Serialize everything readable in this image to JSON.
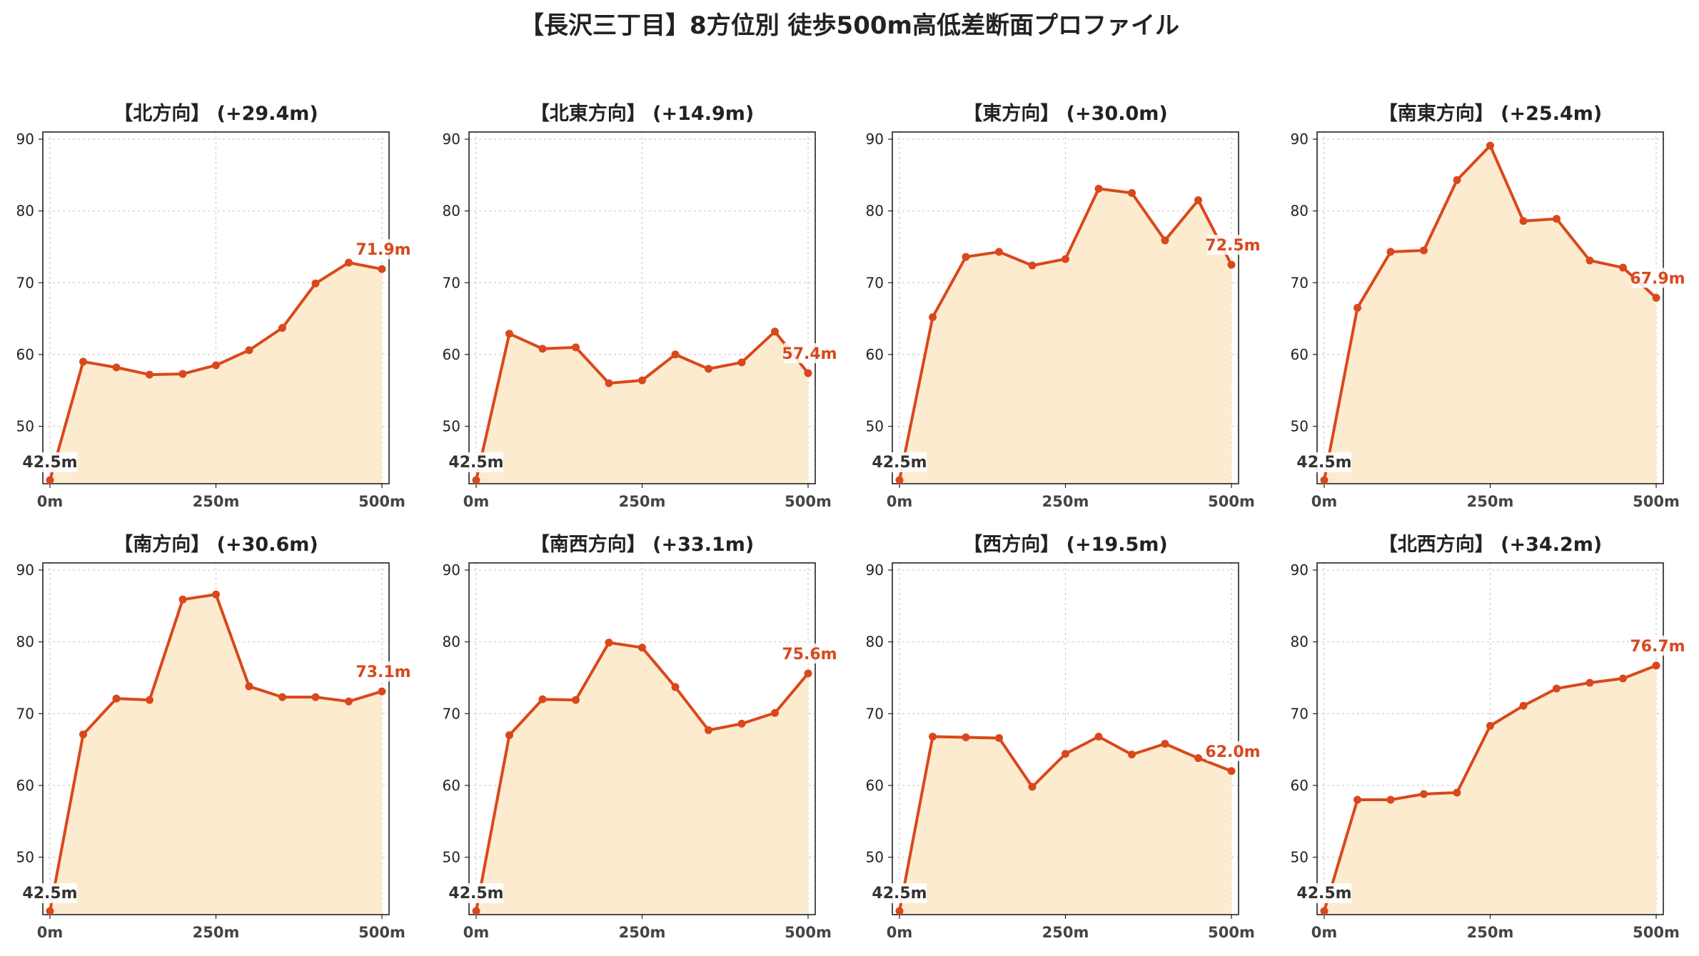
{
  "figure": {
    "title": "【長沢三丁目】8方位別 徒歩500m高低差断面プロファイル",
    "line_color": "#d9481c",
    "fill_color": "#fdebd0"
  },
  "chart_data": [
    {
      "type": "area",
      "title": "【北方向】 (+29.4m)",
      "x": [
        0,
        50,
        100,
        150,
        200,
        250,
        300,
        350,
        400,
        450,
        500
      ],
      "values": [
        42.5,
        59.0,
        58.2,
        57.2,
        57.3,
        58.5,
        60.6,
        63.7,
        69.9,
        72.8,
        71.9
      ],
      "start_label": "42.5m",
      "end_label": "71.9m",
      "xticks": [
        "0m",
        "250m",
        "500m"
      ],
      "yticks": [
        "50",
        "60",
        "70",
        "80",
        "90"
      ],
      "xlim": [
        0,
        500
      ],
      "ylim": [
        42,
        91
      ],
      "grid": true
    },
    {
      "type": "area",
      "title": "【北東方向】 (+14.9m)",
      "x": [
        0,
        50,
        100,
        150,
        200,
        250,
        300,
        350,
        400,
        450,
        500
      ],
      "values": [
        42.5,
        62.9,
        60.8,
        61.0,
        56.0,
        56.4,
        60.0,
        58.0,
        58.9,
        63.2,
        57.4
      ],
      "start_label": "42.5m",
      "end_label": "57.4m",
      "xticks": [
        "0m",
        "250m",
        "500m"
      ],
      "yticks": [
        "50",
        "60",
        "70",
        "80",
        "90"
      ],
      "xlim": [
        0,
        500
      ],
      "ylim": [
        42,
        91
      ],
      "grid": true
    },
    {
      "type": "area",
      "title": "【東方向】 (+30.0m)",
      "x": [
        0,
        50,
        100,
        150,
        200,
        250,
        300,
        350,
        400,
        450,
        500
      ],
      "values": [
        42.5,
        65.2,
        73.6,
        74.3,
        72.4,
        73.3,
        83.1,
        82.5,
        75.9,
        81.5,
        72.5
      ],
      "start_label": "42.5m",
      "end_label": "72.5m",
      "xticks": [
        "0m",
        "250m",
        "500m"
      ],
      "yticks": [
        "50",
        "60",
        "70",
        "80",
        "90"
      ],
      "xlim": [
        0,
        500
      ],
      "ylim": [
        42,
        91
      ],
      "grid": true
    },
    {
      "type": "area",
      "title": "【南東方向】 (+25.4m)",
      "x": [
        0,
        50,
        100,
        150,
        200,
        250,
        300,
        350,
        400,
        450,
        500
      ],
      "values": [
        42.5,
        66.5,
        74.3,
        74.5,
        84.3,
        89.1,
        78.6,
        78.9,
        73.1,
        72.1,
        67.9
      ],
      "start_label": "42.5m",
      "end_label": "67.9m",
      "xticks": [
        "0m",
        "250m",
        "500m"
      ],
      "yticks": [
        "50",
        "60",
        "70",
        "80",
        "90"
      ],
      "xlim": [
        0,
        500
      ],
      "ylim": [
        42,
        91
      ],
      "grid": true
    },
    {
      "type": "area",
      "title": "【南方向】 (+30.6m)",
      "x": [
        0,
        50,
        100,
        150,
        200,
        250,
        300,
        350,
        400,
        450,
        500
      ],
      "values": [
        42.5,
        67.1,
        72.1,
        71.9,
        85.9,
        86.6,
        73.8,
        72.3,
        72.3,
        71.7,
        73.1
      ],
      "start_label": "42.5m",
      "end_label": "73.1m",
      "xticks": [
        "0m",
        "250m",
        "500m"
      ],
      "yticks": [
        "50",
        "60",
        "70",
        "80",
        "90"
      ],
      "xlim": [
        0,
        500
      ],
      "ylim": [
        42,
        91
      ],
      "grid": true
    },
    {
      "type": "area",
      "title": "【南西方向】 (+33.1m)",
      "x": [
        0,
        50,
        100,
        150,
        200,
        250,
        300,
        350,
        400,
        450,
        500
      ],
      "values": [
        42.5,
        67.0,
        72.0,
        71.9,
        79.9,
        79.2,
        73.7,
        67.7,
        68.6,
        70.1,
        75.6
      ],
      "start_label": "42.5m",
      "end_label": "75.6m",
      "xticks": [
        "0m",
        "250m",
        "500m"
      ],
      "yticks": [
        "50",
        "60",
        "70",
        "80",
        "90"
      ],
      "xlim": [
        0,
        500
      ],
      "ylim": [
        42,
        91
      ],
      "grid": true
    },
    {
      "type": "area",
      "title": "【西方向】 (+19.5m)",
      "x": [
        0,
        50,
        100,
        150,
        200,
        250,
        300,
        350,
        400,
        450,
        500
      ],
      "values": [
        42.5,
        66.8,
        66.7,
        66.6,
        59.8,
        64.4,
        66.8,
        64.3,
        65.8,
        63.8,
        62.0
      ],
      "start_label": "42.5m",
      "end_label": "62.0m",
      "xticks": [
        "0m",
        "250m",
        "500m"
      ],
      "yticks": [
        "50",
        "60",
        "70",
        "80",
        "90"
      ],
      "xlim": [
        0,
        500
      ],
      "ylim": [
        42,
        91
      ],
      "grid": true
    },
    {
      "type": "area",
      "title": "【北西方向】 (+34.2m)",
      "x": [
        0,
        50,
        100,
        150,
        200,
        250,
        300,
        350,
        400,
        450,
        500
      ],
      "values": [
        42.5,
        58.0,
        58.0,
        58.8,
        59.0,
        68.3,
        71.1,
        73.5,
        74.3,
        74.9,
        76.7
      ],
      "start_label": "42.5m",
      "end_label": "76.7m",
      "xticks": [
        "0m",
        "250m",
        "500m"
      ],
      "yticks": [
        "50",
        "60",
        "70",
        "80",
        "90"
      ],
      "xlim": [
        0,
        500
      ],
      "ylim": [
        42,
        91
      ],
      "grid": true
    }
  ]
}
